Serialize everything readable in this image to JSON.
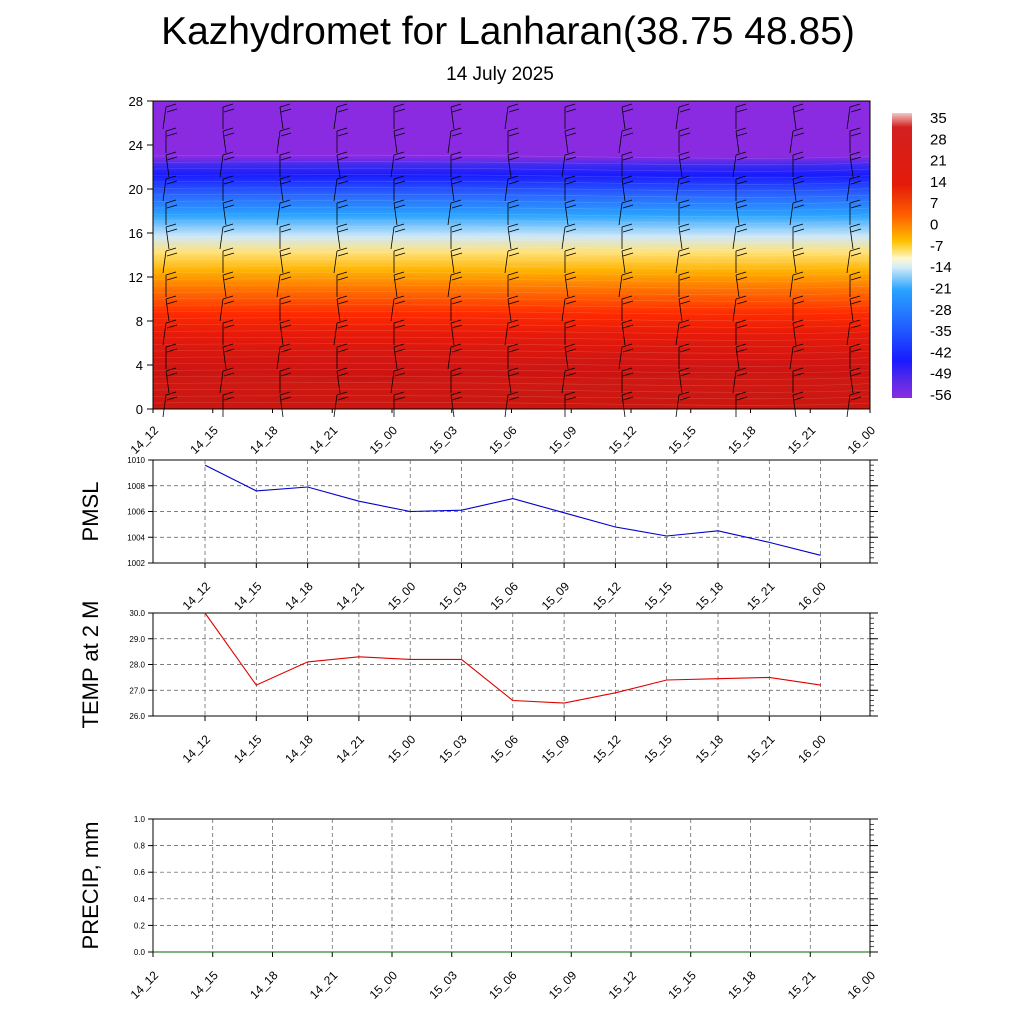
{
  "title": "Kazhydromet for Lanharan(38.75 48.85)",
  "subtitle": "14 July 2025",
  "time_labels": [
    "14_12",
    "14_15",
    "14_18",
    "14_21",
    "15_00",
    "15_03",
    "15_06",
    "15_09",
    "15_12",
    "15_15",
    "15_18",
    "15_21",
    "16_00"
  ],
  "chart_data": [
    {
      "type": "heatmap",
      "y_ticks": [
        0,
        4,
        8,
        12,
        16,
        20,
        24,
        28
      ],
      "ylim": [
        0,
        28
      ],
      "x": [
        "14_12",
        "14_15",
        "14_18",
        "14_21",
        "15_00",
        "15_03",
        "15_06",
        "15_09",
        "15_12",
        "15_15",
        "15_18",
        "15_21",
        "16_00"
      ],
      "colorbar_labels": [
        "35",
        "28",
        "21",
        "14",
        "7",
        "0",
        "-7",
        "-14",
        "-21",
        "-28",
        "-35",
        "-42",
        "-49",
        "-56"
      ],
      "colors": {
        "top": "#8a2be2",
        "cold": "#1a1aff",
        "cool": "#29a3ff",
        "neutral": "#f7f7f7",
        "warm": "#ffd23f",
        "hot": "#ff3a00",
        "max": "#c8120c"
      }
    },
    {
      "type": "line",
      "ylabel": "PMSL",
      "y_ticks": [
        "1002",
        "1004",
        "1006",
        "1008",
        "1010"
      ],
      "ylim": [
        1002,
        1010
      ],
      "x": [
        "14_12",
        "14_15",
        "14_18",
        "14_21",
        "15_00",
        "15_03",
        "15_06",
        "15_09",
        "15_12",
        "15_15",
        "15_18",
        "15_21",
        "16_00"
      ],
      "values": [
        1009.6,
        1007.6,
        1007.9,
        1006.8,
        1006.0,
        1006.1,
        1007.0,
        1005.9,
        1004.8,
        1004.1,
        1004.5,
        1003.6,
        1002.6
      ],
      "color": "#0000cc"
    },
    {
      "type": "line",
      "ylabel": "TEMP at 2 M",
      "y_ticks": [
        "26.0",
        "27.0",
        "28.0",
        "29.0",
        "30.0"
      ],
      "ylim": [
        26,
        30
      ],
      "x": [
        "14_12",
        "14_15",
        "14_18",
        "14_21",
        "15_00",
        "15_03",
        "15_06",
        "15_09",
        "15_12",
        "15_15",
        "15_18",
        "15_21",
        "16_00"
      ],
      "values": [
        30.0,
        27.2,
        28.1,
        28.3,
        28.2,
        28.2,
        26.6,
        26.5,
        26.9,
        27.4,
        27.45,
        27.5,
        27.2
      ],
      "color": "#e00000"
    },
    {
      "type": "line",
      "ylabel": "PRECIP, mm",
      "y_ticks": [
        "0.0",
        "0.2",
        "0.4",
        "0.6",
        "0.8",
        "1.0"
      ],
      "ylim": [
        0,
        1
      ],
      "x": [
        "14_12",
        "14_15",
        "14_18",
        "14_21",
        "15_00",
        "15_03",
        "15_06",
        "15_09",
        "15_12",
        "15_15",
        "15_18",
        "15_21",
        "16_00"
      ],
      "values": [
        0,
        0,
        0,
        0,
        0,
        0,
        0,
        0,
        0,
        0,
        0,
        0,
        0
      ],
      "color": "#006400"
    }
  ]
}
